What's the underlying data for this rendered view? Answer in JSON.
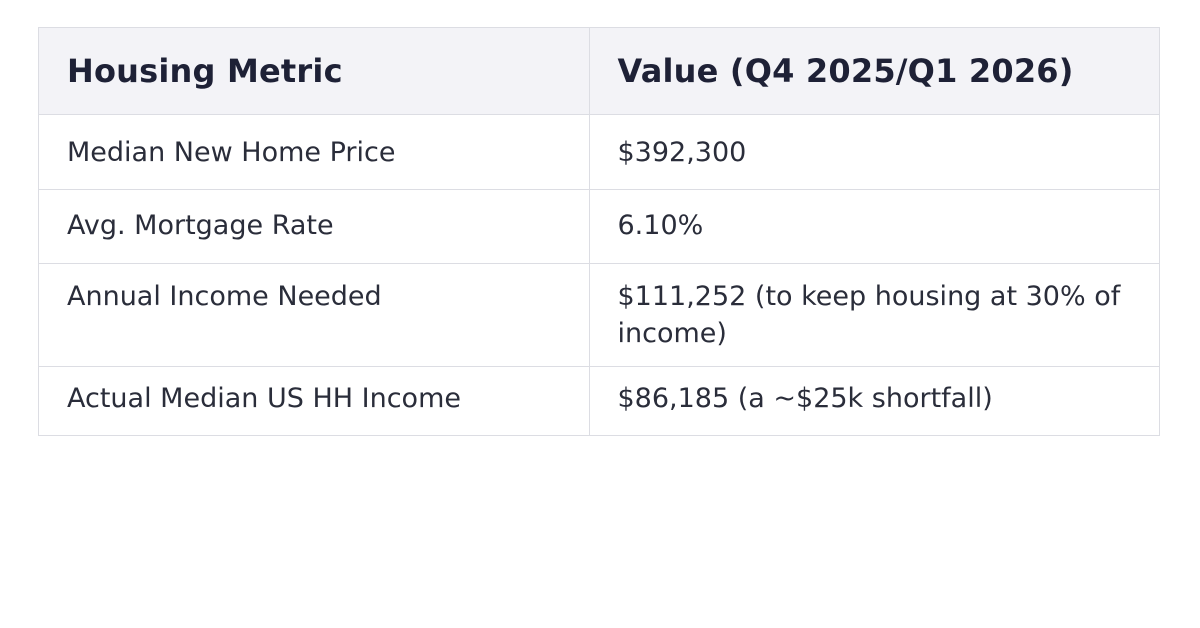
{
  "table": {
    "headers": [
      "Housing Metric",
      "Value (Q4 2025/Q1 2026)"
    ],
    "rows": [
      {
        "metric": "Median New Home Price",
        "value": "$392,300"
      },
      {
        "metric": "Avg. Mortgage Rate",
        "value": "6.10%"
      },
      {
        "metric": "Annual Income Needed",
        "value": "$111,252 (to keep housing at 30% of income)"
      },
      {
        "metric": "Actual Median US HH Income",
        "value": "$86,185 (a ~$25k shortfall)"
      }
    ]
  }
}
